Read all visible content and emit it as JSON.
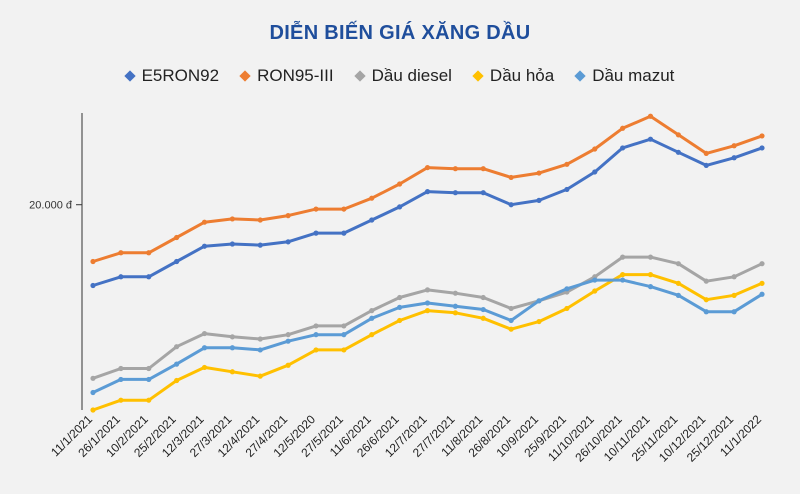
{
  "chart_data": {
    "type": "line",
    "title": "DIỄN BIẾN GIÁ XĂNG DẦU",
    "xlabel": "",
    "ylabel": "",
    "categories": [
      "11/1/2021",
      "26/1/2021",
      "10/2/2021",
      "25/2/2021",
      "12/3/2021",
      "27/3/2021",
      "12/4/2021",
      "27/4/2021",
      "12/5/2020",
      "27/5/2021",
      "11/6/2021",
      "26/6/2021",
      "12/7/2021",
      "27/7/2021",
      "11/8/2021",
      "26/8/2021",
      "10/9/2021",
      "25/9/2021",
      "11/10/2021",
      "26/10/2021",
      "10/11/2021",
      "25/11/2021",
      "10/12/2021",
      "25/12/2021",
      "11/1/2022"
    ],
    "y_tick_label": "20.000 đ",
    "y_tick_value": 20000,
    "ylim": [
      10600,
      24200
    ],
    "grid": false,
    "legend_position": "top",
    "series": [
      {
        "name": "E5RON92",
        "color": "#4472c4",
        "values": [
          16300,
          16700,
          16700,
          17400,
          18100,
          18200,
          18150,
          18300,
          18700,
          18700,
          19300,
          19900,
          20600,
          20550,
          20550,
          20000,
          20200,
          20700,
          21500,
          22600,
          23000,
          22400,
          21800,
          22150,
          22600
        ]
      },
      {
        "name": "RON95-III",
        "color": "#ed7d31",
        "values": [
          17400,
          17800,
          17800,
          18500,
          19200,
          19350,
          19300,
          19500,
          19800,
          19800,
          20300,
          20950,
          21700,
          21650,
          21650,
          21250,
          21450,
          21850,
          22550,
          23500,
          24050,
          23200,
          22350,
          22700,
          23150
        ]
      },
      {
        "name": "Dầu diesel",
        "color": "#a5a5a5",
        "values": [
          12050,
          12500,
          12500,
          13500,
          14100,
          13950,
          13850,
          14050,
          14450,
          14450,
          15150,
          15750,
          16100,
          15950,
          15750,
          15250,
          15600,
          16000,
          16700,
          17600,
          17600,
          17300,
          16500,
          16700,
          17300
        ]
      },
      {
        "name": "Dầu hỏa",
        "color": "#ffc000",
        "values": [
          10600,
          11050,
          11050,
          11950,
          12550,
          12350,
          12150,
          12650,
          13350,
          13350,
          14050,
          14700,
          15150,
          15050,
          14800,
          14300,
          14650,
          15250,
          16050,
          16800,
          16800,
          16400,
          15650,
          15850,
          16400
        ]
      },
      {
        "name": "Dầu mazut",
        "color": "#5b9bd5",
        "values": [
          11400,
          12000,
          12000,
          12700,
          13450,
          13450,
          13350,
          13750,
          14050,
          14050,
          14800,
          15300,
          15500,
          15350,
          15200,
          14700,
          15600,
          16150,
          16550,
          16550,
          16250,
          15850,
          15100,
          15100,
          15900
        ]
      }
    ]
  }
}
